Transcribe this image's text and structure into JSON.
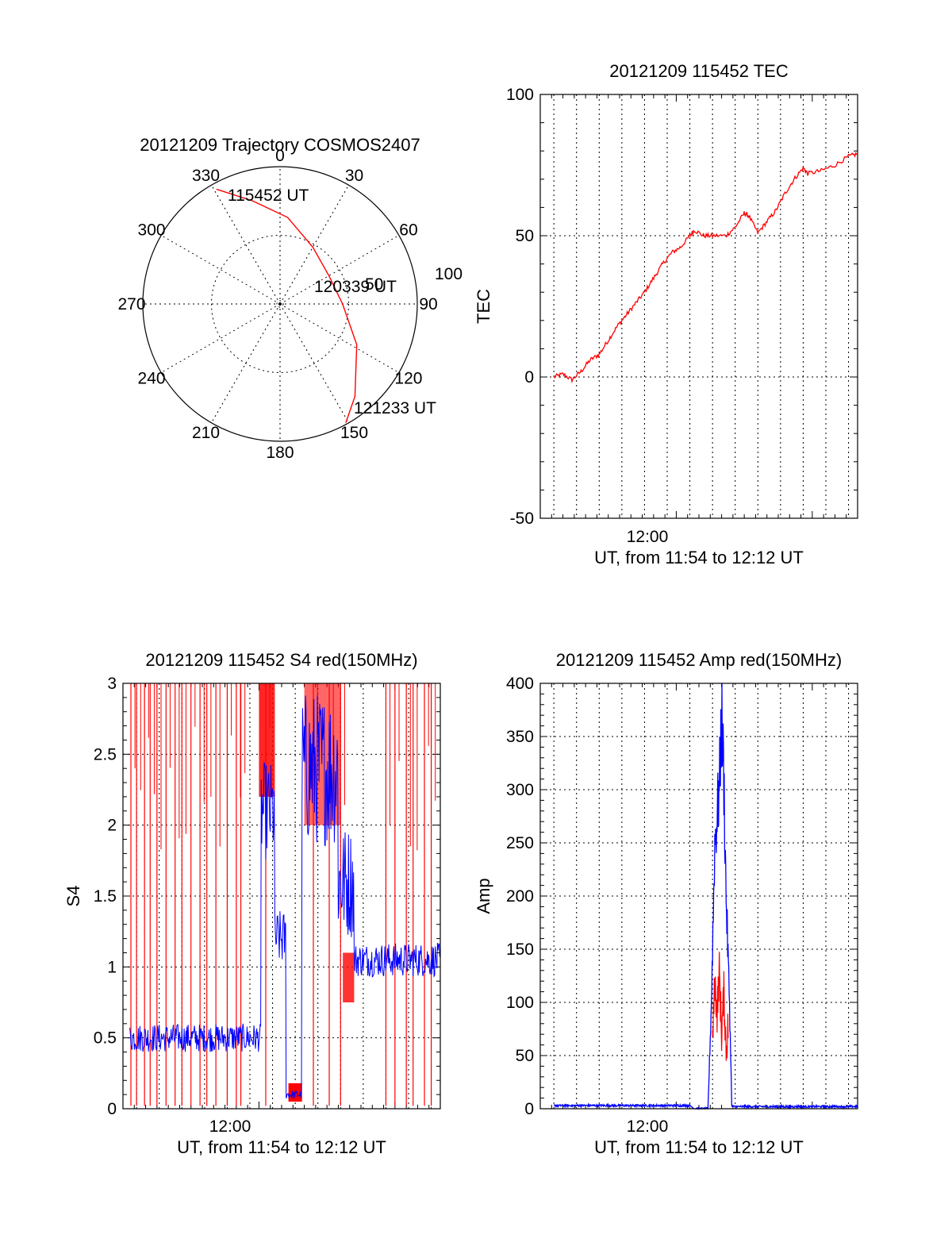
{
  "chart_data": [
    {
      "panel": "trajectory",
      "type": "scatter",
      "title": "20121209 Trajectory COSMOS2407",
      "azimuth_labels": [
        "0",
        "30",
        "60",
        "90",
        "120",
        "150",
        "180",
        "210",
        "240",
        "270",
        "300",
        "330"
      ],
      "elevation_rings": [
        0,
        50
      ],
      "ring_labels": [
        "50",
        "100"
      ],
      "trajectory": {
        "start_label": "115452 UT",
        "mid_label": "120339 UT",
        "end_label": "121233 UT",
        "points": [
          {
            "az": 331,
            "zd": 86
          },
          {
            "az": 345,
            "zd": 70
          },
          {
            "az": 5,
            "zd": 57
          },
          {
            "az": 30,
            "zd": 43
          },
          {
            "az": 60,
            "zd": 37
          },
          {
            "az": 90,
            "zd": 41
          },
          {
            "az": 118,
            "zd": 57
          },
          {
            "az": 141,
            "zd": 78
          },
          {
            "az": 151,
            "zd": 89
          }
        ],
        "color": "#ff0000"
      }
    },
    {
      "panel": "tec",
      "type": "line",
      "title": "20121209 115452 TEC",
      "xlabel": "UT, from 11:54 to 12:12 UT",
      "ylabel": "TEC",
      "xtick_label": "12:00",
      "ylim": [
        -50,
        100
      ],
      "yticks": [
        "-50",
        "0",
        "50",
        "100"
      ],
      "series": [
        {
          "color": "#ff0000",
          "points": [
            [
              0.6,
              0
            ],
            [
              1.0,
              1
            ],
            [
              1.4,
              -1
            ],
            [
              1.8,
              2
            ],
            [
              2.2,
              6
            ],
            [
              2.6,
              8
            ],
            [
              3.0,
              13
            ],
            [
              3.4,
              18
            ],
            [
              3.8,
              22
            ],
            [
              4.2,
              26
            ],
            [
              4.6,
              30
            ],
            [
              5.0,
              35
            ],
            [
              5.4,
              40
            ],
            [
              5.8,
              44
            ],
            [
              6.2,
              46
            ],
            [
              6.6,
              50
            ],
            [
              6.8,
              52
            ],
            [
              7.2,
              50
            ],
            [
              7.6,
              50
            ],
            [
              8.2,
              50
            ],
            [
              8.6,
              53
            ],
            [
              9.0,
              58
            ],
            [
              9.2,
              57
            ],
            [
              9.6,
              51
            ],
            [
              10.0,
              55
            ],
            [
              10.4,
              59
            ],
            [
              10.8,
              65
            ],
            [
              11.2,
              70
            ],
            [
              11.6,
              74
            ],
            [
              11.8,
              72
            ],
            [
              12.4,
              73
            ],
            [
              13.0,
              75
            ],
            [
              13.6,
              78
            ],
            [
              14.0,
              79
            ]
          ]
        }
      ]
    },
    {
      "panel": "s4",
      "type": "line",
      "title": "20121209 115452 S4 red(150MHz)",
      "xlabel": "UT, from 11:54 to 12:12 UT",
      "ylabel": "S4",
      "xtick_label": "12:00",
      "ylim": [
        0,
        3
      ],
      "yticks": [
        "0",
        "0.5",
        "1",
        "1.5",
        "2",
        "2.5",
        "3"
      ],
      "series": [
        {
          "color": "#0000ff",
          "segments": [
            {
              "x0": 0.3,
              "x1": 6.1,
              "mean": 0.5,
              "amp": 0.1
            },
            {
              "x0": 6.1,
              "x1": 6.7,
              "mean": 2.1,
              "amp": 0.35
            },
            {
              "x0": 6.7,
              "x1": 7.2,
              "mean": 1.2,
              "amp": 0.2
            },
            {
              "x0": 7.2,
              "x1": 7.9,
              "mean": 0.1,
              "amp": 0.03
            },
            {
              "x0": 7.9,
              "x1": 9.5,
              "mean": 2.4,
              "amp": 0.55
            },
            {
              "x0": 9.5,
              "x1": 10.2,
              "mean": 1.6,
              "amp": 0.4
            },
            {
              "x0": 10.2,
              "x1": 14.0,
              "mean": 1.05,
              "amp": 0.12
            }
          ]
        },
        {
          "color": "#ff0000",
          "note": "saturated spikes",
          "spike_times": [
            0.35,
            0.6,
            0.95,
            1.2,
            1.5,
            1.9,
            2.3,
            2.6,
            3.0,
            3.4,
            3.7,
            4.1,
            4.6,
            5.0,
            5.2,
            6.3,
            8.4,
            9.1,
            9.6,
            11.6,
            12.0,
            12.5,
            12.8,
            13.3,
            13.6
          ]
        }
      ]
    },
    {
      "panel": "amp",
      "type": "line",
      "title": "20121209 115452 Amp red(150MHz)",
      "xlabel": "UT, from 11:54 to 12:12 UT",
      "ylabel": "Amp",
      "xtick_label": "12:00",
      "ylim": [
        0,
        400
      ],
      "yticks": [
        "0",
        "50",
        "100",
        "150",
        "200",
        "250",
        "300",
        "350",
        "400"
      ],
      "series": [
        {
          "color": "#0000ff",
          "points": [
            [
              0.6,
              3
            ],
            [
              6.6,
              3
            ],
            [
              6.8,
              0
            ],
            [
              7.4,
              0
            ],
            [
              7.55,
              100
            ],
            [
              7.7,
              250
            ],
            [
              7.9,
              300
            ],
            [
              8.0,
              370
            ],
            [
              8.1,
              310
            ],
            [
              8.2,
              200
            ],
            [
              8.35,
              100
            ],
            [
              8.45,
              2
            ],
            [
              10.0,
              2
            ],
            [
              14.0,
              2
            ]
          ]
        },
        {
          "color": "#ff0000",
          "points": [
            [
              7.6,
              60
            ],
            [
              7.7,
              120
            ],
            [
              7.8,
              90
            ],
            [
              7.9,
              130
            ],
            [
              8.0,
              70
            ],
            [
              8.1,
              110
            ],
            [
              8.2,
              55
            ],
            [
              8.3,
              80
            ]
          ]
        }
      ]
    }
  ]
}
